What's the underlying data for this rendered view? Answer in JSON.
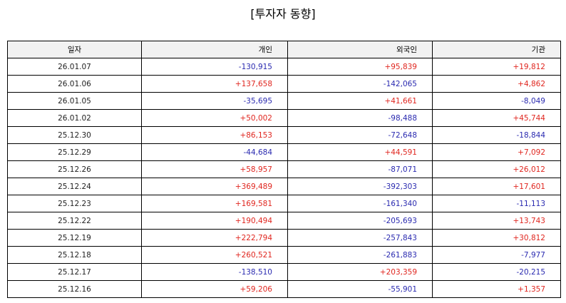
{
  "title": "[투자자 동향]",
  "table": {
    "headers": [
      "일자",
      "개인",
      "외국인",
      "기관"
    ],
    "rows": [
      [
        "26.01.07",
        "-130,915",
        "+95,839",
        "+19,812"
      ],
      [
        "26.01.06",
        "+137,658",
        "-142,065",
        "+4,862"
      ],
      [
        "26.01.05",
        "-35,695",
        "+41,661",
        "-8,049"
      ],
      [
        "26.01.02",
        "+50,002",
        "-98,488",
        "+45,744"
      ],
      [
        "25.12.30",
        "+86,153",
        "-72,648",
        "-18,844"
      ],
      [
        "25.12.29",
        "-44,684",
        "+44,591",
        "+7,092"
      ],
      [
        "25.12.26",
        "+58,957",
        "-87,071",
        "+26,012"
      ],
      [
        "25.12.24",
        "+369,489",
        "-392,303",
        "+17,601"
      ],
      [
        "25.12.23",
        "+169,581",
        "-161,340",
        "-11,113"
      ],
      [
        "25.12.22",
        "+190,494",
        "-205,693",
        "+13,743"
      ],
      [
        "25.12.19",
        "+222,794",
        "-257,843",
        "+30,812"
      ],
      [
        "25.12.18",
        "+260,521",
        "-261,883",
        "-7,977"
      ],
      [
        "25.12.17",
        "-138,510",
        "+203,359",
        "-20,215"
      ],
      [
        "25.12.16",
        "+59,206",
        "-55,901",
        "+1,357"
      ]
    ]
  },
  "colors": {
    "positive": "#e0261f",
    "negative": "#2a2ab0",
    "header_bg": "#f2f2f2"
  }
}
